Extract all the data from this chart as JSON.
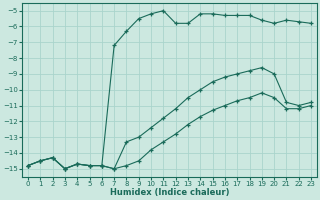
{
  "xlabel": "Humidex (Indice chaleur)",
  "bg_color": "#cce8e0",
  "grid_color": "#aad4cc",
  "line_color": "#1a6b5a",
  "xlim": [
    -0.5,
    23.5
  ],
  "ylim": [
    -15.5,
    -4.5
  ],
  "yticks": [
    -15,
    -14,
    -13,
    -12,
    -11,
    -10,
    -9,
    -8,
    -7,
    -6,
    -5
  ],
  "xticks": [
    0,
    1,
    2,
    3,
    4,
    5,
    6,
    7,
    8,
    9,
    10,
    11,
    12,
    13,
    14,
    15,
    16,
    17,
    18,
    19,
    20,
    21,
    22,
    23
  ],
  "line1_x": [
    0,
    1,
    2,
    3,
    4,
    5,
    6,
    7,
    8,
    9,
    10,
    11,
    12,
    13,
    14,
    15,
    16,
    17,
    18,
    19,
    20,
    21,
    22,
    23
  ],
  "line1_y": [
    -14.8,
    -14.5,
    -14.3,
    -15.0,
    -14.7,
    -14.8,
    -14.8,
    -7.2,
    -6.3,
    -5.5,
    -5.2,
    -5.0,
    -5.8,
    -5.8,
    -5.2,
    -5.2,
    -5.3,
    -5.3,
    -5.3,
    -5.6,
    -5.8,
    -5.6,
    -5.7,
    -5.8
  ],
  "line2_x": [
    0,
    1,
    2,
    3,
    4,
    5,
    6,
    7,
    8,
    9,
    10,
    11,
    12,
    13,
    14,
    15,
    16,
    17,
    18,
    19,
    20,
    21,
    22,
    23
  ],
  "line2_y": [
    -14.8,
    -14.5,
    -14.3,
    -15.0,
    -14.7,
    -14.8,
    -14.8,
    -15.0,
    -13.3,
    -13.0,
    -12.4,
    -11.8,
    -11.2,
    -10.5,
    -10.0,
    -9.5,
    -9.2,
    -9.0,
    -8.8,
    -8.6,
    -9.0,
    -10.8,
    -11.0,
    -10.8
  ],
  "line3_x": [
    0,
    1,
    2,
    3,
    4,
    5,
    6,
    7,
    8,
    9,
    10,
    11,
    12,
    13,
    14,
    15,
    16,
    17,
    18,
    19,
    20,
    21,
    22,
    23
  ],
  "line3_y": [
    -14.8,
    -14.5,
    -14.3,
    -15.0,
    -14.7,
    -14.8,
    -14.8,
    -15.0,
    -14.8,
    -14.5,
    -13.8,
    -13.3,
    -12.8,
    -12.2,
    -11.7,
    -11.3,
    -11.0,
    -10.7,
    -10.5,
    -10.2,
    -10.5,
    -11.2,
    -11.2,
    -11.0
  ]
}
